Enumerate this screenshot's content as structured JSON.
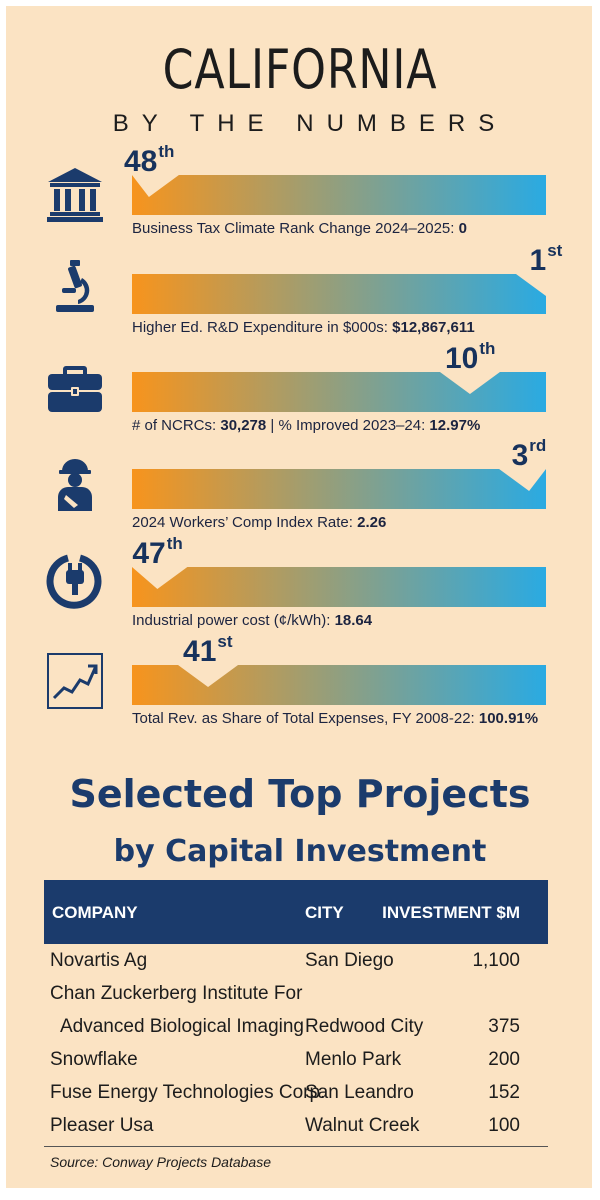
{
  "header": {
    "title": "CALIFORNIA",
    "subtitle": "BY THE NUMBERS"
  },
  "colors": {
    "navy": "#1b3b6c",
    "bar_start": "#f7941d",
    "bar_end": "#2aaae2",
    "background": "#fbe3c3"
  },
  "metrics": [
    {
      "icon": "government-building-icon",
      "rank_num": "48",
      "rank_suffix": "th",
      "rank_value": 48,
      "label": "Business Tax Climate Rank Change 2024–2025: ",
      "value": "0"
    },
    {
      "icon": "microscope-icon",
      "rank_num": "1",
      "rank_suffix": "st",
      "rank_value": 1,
      "label": "Higher Ed. R&D Expenditure in $000s: ",
      "value": "$12,867,611"
    },
    {
      "icon": "briefcase-icon",
      "rank_num": "10",
      "rank_suffix": "th",
      "rank_value": 10,
      "label": "# of NCRCs: ",
      "value": "30,278",
      "label2": " | % Improved 2023–24: ",
      "value2": "12.97%"
    },
    {
      "icon": "injured-worker-icon",
      "rank_num": "3",
      "rank_suffix": "rd",
      "rank_value": 3,
      "label": "2024 Workers’ Comp Index Rate: ",
      "value": "2.26"
    },
    {
      "icon": "power-plug-icon",
      "rank_num": "47",
      "rank_suffix": "th",
      "rank_value": 47,
      "label": "Industrial power cost (¢/kWh): ",
      "value": "18.64"
    },
    {
      "icon": "trend-chart-icon",
      "rank_num": "41",
      "rank_suffix": "st",
      "rank_value": 41,
      "label": "Total Rev. as Share of Total Expenses, FY 2008-22: ",
      "value": "100.91%"
    }
  ],
  "projects": {
    "title_line1": "Selected Top Projects",
    "title_line2": "by Capital Investment",
    "columns": [
      "COMPANY",
      "CITY",
      "INVESTMENT $M"
    ],
    "rows": [
      {
        "company": "Novartis Ag",
        "city": "San Diego",
        "investment": "1,100"
      },
      {
        "company": "Chan Zuckerberg Institute For",
        "city": "",
        "investment": ""
      },
      {
        "company": "Advanced Biological Imaging",
        "city": "Redwood City",
        "investment": "375"
      },
      {
        "company": "Snowflake",
        "city": "Menlo Park",
        "investment": "200"
      },
      {
        "company": "Fuse Energy Technologies Corp.",
        "city": "San Leandro",
        "investment": "152"
      },
      {
        "company": "Pleaser Usa",
        "city": "Walnut Creek",
        "investment": "100"
      }
    ],
    "source": "Source: Conway Projects Database"
  },
  "chart_data": {
    "type": "bar",
    "categories": [
      "Business Tax Climate Rank Change 2024–2025",
      "Higher Ed. R&D Expenditure in $000s",
      "# of NCRCs | % Improved 2023–24",
      "2024 Workers’ Comp Index Rate",
      "Industrial power cost (¢/kWh)",
      "Total Rev. as Share of Total Expenses, FY 2008-22"
    ],
    "values": [
      48,
      1,
      10,
      3,
      47,
      41
    ],
    "xlim": [
      1,
      50
    ]
  }
}
